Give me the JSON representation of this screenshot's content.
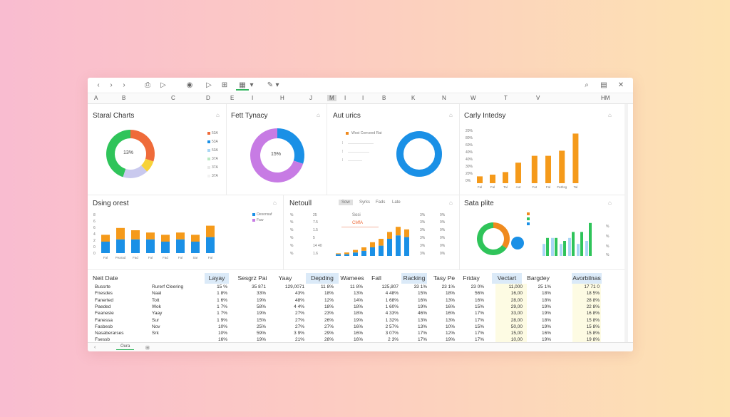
{
  "toolbar": {
    "back": "‹",
    "forward": "›",
    "nav": "›",
    "file": "⎙",
    "send": "▷",
    "view": "◉",
    "grid": "⊞",
    "chart": "▦",
    "chart_caret": "▾",
    "brush": "✎",
    "brush_caret": "▾",
    "search": "⌕",
    "save": "▤",
    "close": "✕"
  },
  "columns": [
    "A",
    "B",
    "C",
    "D",
    "E",
    "I",
    "H",
    "J",
    "M",
    "I",
    "I",
    "B",
    "K",
    "N",
    "W",
    "T",
    "V",
    "HM"
  ],
  "panels": {
    "p1": {
      "title": "Staral Charts",
      "center": "13%",
      "legend": [
        "53A",
        "53A",
        "53A",
        "37A",
        "37A",
        "37A"
      ]
    },
    "p2": {
      "title": "Fett Tynacy",
      "center": "15%"
    },
    "p3": {
      "title": "Aut urics",
      "legend": "Wost Corrceed Rat"
    },
    "p4": {
      "title": "Carly Intedsy"
    },
    "p5": {
      "title": "Dsing orest",
      "legend": [
        "Oesonsaf",
        "Faw"
      ]
    },
    "p6": {
      "title": "Netoull",
      "tabs": [
        "Sow",
        "Syrks",
        "Fads",
        "Late"
      ],
      "labels": [
        "Sosi",
        "CMfA"
      ],
      "left_ticks": [
        "25",
        "7.5",
        "1.5",
        "5",
        "14 40",
        "1.6"
      ],
      "right_ticks": [
        "3%",
        "3%",
        "3%",
        "3%",
        "3%",
        "3%"
      ],
      "right_ticks2": [
        "0%",
        "0%",
        "0%",
        "0%",
        "0%",
        "0%"
      ]
    },
    "p7": {
      "title": "Sata plite"
    }
  },
  "chart_data": [
    {
      "type": "pie",
      "title": "Staral Charts",
      "values": [
        30,
        8,
        17,
        45
      ],
      "colors": [
        "#ef6b3a",
        "#f7d23a",
        "#c9c9ee",
        "#2fc45a"
      ]
    },
    {
      "type": "pie",
      "title": "Fett Tynacy",
      "values": [
        30,
        70
      ],
      "colors": [
        "#1a90e6",
        "#c77be4"
      ]
    },
    {
      "type": "pie",
      "title": "Aut urics",
      "values": [
        100
      ],
      "colors": [
        "#1a90e6"
      ]
    },
    {
      "type": "bar",
      "title": "Carly Intedsy",
      "categories": [
        "Fal",
        "Fal",
        "Tal",
        "Aut",
        "Fat",
        "Fal",
        "Fathsg",
        "Tal"
      ],
      "values": [
        8,
        10,
        13,
        24,
        32,
        32,
        38,
        58
      ],
      "ylim": [
        0,
        60
      ]
    },
    {
      "type": "bar",
      "title": "Dsing orest",
      "categories": [
        "Fal",
        "Pearad",
        "Fad",
        "Fal",
        "Fad",
        "Fal",
        "Sar",
        "Fal"
      ],
      "series": [
        {
          "name": "Oesonsaf",
          "values": [
            5,
            6,
            6,
            6,
            5,
            6,
            5,
            7
          ]
        },
        {
          "name": "Faw",
          "values": [
            3,
            5,
            4,
            3,
            3,
            3,
            3,
            5
          ]
        }
      ]
    },
    {
      "type": "bar",
      "title": "Netoull",
      "series": [
        {
          "values": [
            1,
            2,
            3,
            4,
            6,
            8,
            8,
            10,
            9
          ]
        },
        {
          "values": [
            1,
            1,
            2,
            3,
            5,
            6,
            10,
            12,
            11
          ]
        }
      ]
    },
    {
      "type": "bar",
      "title": "Sata plite",
      "series": [
        {
          "values": [
            4,
            6,
            4,
            6,
            4,
            5
          ]
        },
        {
          "values": [
            6,
            6,
            5,
            8,
            8,
            11
          ]
        }
      ]
    }
  ],
  "table": {
    "header_label": "Neit Date",
    "headers": [
      "Layay",
      "Sesgrz Pai",
      "Yaay",
      "Depding",
      "Wamees",
      "Fall",
      "Racking",
      "Tasy Pe",
      "Friday",
      "Vectart",
      "Bargdey",
      "Avorbilnas"
    ],
    "rows": [
      [
        "Bussrte",
        "Rurerf Cleering",
        "15 %",
        "35 871",
        "129,0071",
        "11 8%",
        "11 8%",
        "125,807",
        "33 1%",
        "23 1%",
        "23 0%",
        "11,000",
        "25 1%",
        "17 71 0"
      ],
      [
        "Fnesdes",
        "Naal",
        "1 8%",
        "33%",
        "43%",
        "18%",
        "13%",
        "4 48%",
        "15%",
        "18%",
        "56%",
        "16,00",
        "18%",
        "18 5%"
      ],
      [
        "Fanerted",
        "Tott",
        "1 6%",
        "19%",
        "48%",
        "12%",
        "14%",
        "1 68%",
        "16%",
        "13%",
        "16%",
        "28,00",
        "18%",
        "28 8%"
      ],
      [
        "Paeded",
        "Wok",
        "1 7%",
        "58%",
        "4 4%",
        "18%",
        "18%",
        "1 60%",
        "19%",
        "16%",
        "15%",
        "29,00",
        "19%",
        "22 8%"
      ],
      [
        "Feanesle",
        "Yaay",
        "1 7%",
        "19%",
        "27%",
        "23%",
        "18%",
        "4 33%",
        "46%",
        "16%",
        "17%",
        "33,00",
        "19%",
        "16 8%"
      ],
      [
        "Fanessa",
        "Sur",
        "1 9%",
        "15%",
        "27%",
        "26%",
        "19%",
        "1 32%",
        "13%",
        "13%",
        "17%",
        "28,00",
        "18%",
        "15 8%"
      ],
      [
        "Fasbesb",
        "Nov",
        "10%",
        "25%",
        "27%",
        "27%",
        "16%",
        "2 57%",
        "13%",
        "10%",
        "15%",
        "50,00",
        "19%",
        "15 8%"
      ],
      [
        "Nasaberarses",
        "Srk",
        "10%",
        "59%",
        "3 9%",
        "29%",
        "16%",
        "3 07%",
        "17%",
        "12%",
        "17%",
        "15,00",
        "16%",
        "15 8%"
      ],
      [
        "Fsessb",
        "",
        "16%",
        "19%",
        "21%",
        "28%",
        "16%",
        "2 3%",
        "17%",
        "19%",
        "17%",
        "10,00",
        "19%",
        "19 8%"
      ]
    ]
  },
  "sheet": {
    "tab": "Oura",
    "add": "⊞",
    "nav": "‹"
  }
}
